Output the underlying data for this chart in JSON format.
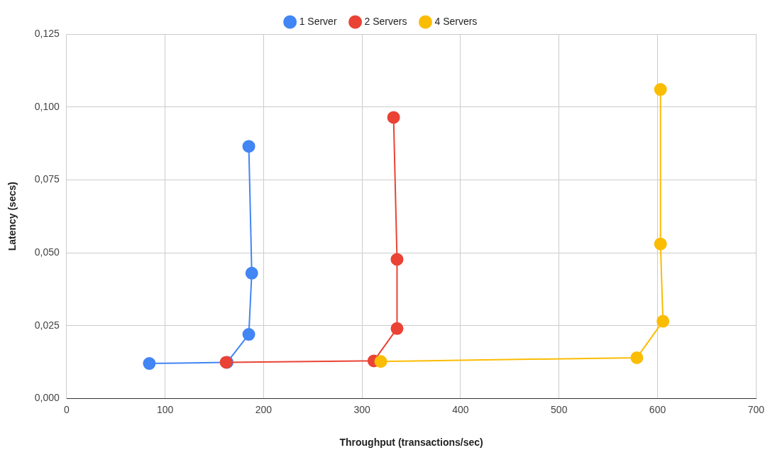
{
  "chart_data": {
    "type": "line",
    "xlabel": "Throughput (transactions/sec)",
    "ylabel": "Latency (secs)",
    "series": [
      {
        "name": "1 Server",
        "color": "#4285f4",
        "x": [
          84,
          163,
          185,
          188,
          185
        ],
        "values": [
          0.012,
          0.0124,
          0.022,
          0.043,
          0.0865
        ]
      },
      {
        "name": "2 Servers",
        "color": "#ea4335",
        "x": [
          162,
          312,
          335.5,
          335.5,
          332
        ],
        "values": [
          0.0124,
          0.0129,
          0.024,
          0.0477,
          0.0964
        ]
      },
      {
        "name": "4 Servers",
        "color": "#fbbc04",
        "x": [
          319,
          579,
          605.5,
          603,
          603
        ],
        "values": [
          0.0127,
          0.014,
          0.0265,
          0.053,
          0.106
        ]
      }
    ],
    "xlim": [
      0,
      700
    ],
    "xticks": [
      0,
      100,
      200,
      300,
      400,
      500,
      600,
      700
    ],
    "ylim": [
      0,
      0.125
    ],
    "yticks": [
      {
        "value": 0,
        "label": "0,000"
      },
      {
        "value": 0.025,
        "label": "0,025"
      },
      {
        "value": 0.05,
        "label": "0,050"
      },
      {
        "value": 0.075,
        "label": "0,075"
      },
      {
        "value": 0.1,
        "label": "0,100"
      },
      {
        "value": 0.125,
        "label": "0,125"
      }
    ],
    "grid": true,
    "legend": "top",
    "marker": "circle",
    "line_style": "solid"
  }
}
